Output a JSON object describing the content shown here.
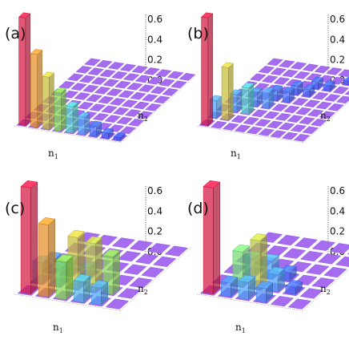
{
  "chart_data": [
    {
      "type": "bar3d",
      "panel_label": "(a)",
      "xlabel": "n1",
      "ylabel": "n2",
      "zticks": [
        "0.6",
        "0.4",
        "0.2",
        "0.0"
      ],
      "zlim": [
        0,
        0.6
      ],
      "grid_size": [
        9,
        9
      ],
      "bars": [
        {
          "n1": 0,
          "n2": 0,
          "value": 0.62
        },
        {
          "n1": 1,
          "n2": 0,
          "value": 0.42
        },
        {
          "n1": 2,
          "n2": 0,
          "value": 0.3
        },
        {
          "n1": 3,
          "n2": 0,
          "value": 0.22
        },
        {
          "n1": 4,
          "n2": 0,
          "value": 0.15
        },
        {
          "n1": 5,
          "n2": 0,
          "value": 0.1
        },
        {
          "n1": 6,
          "n2": 0,
          "value": 0.06
        },
        {
          "n1": 7,
          "n2": 0,
          "value": 0.03
        },
        {
          "n1": 8,
          "n2": 0,
          "value": 0.015
        }
      ]
    },
    {
      "type": "bar3d",
      "panel_label": "(b)",
      "xlabel": "n1",
      "ylabel": "n2",
      "zticks": [
        "0.6",
        "0.4",
        "0.2",
        "0.0"
      ],
      "zlim": [
        0,
        0.6
      ],
      "grid_size": [
        9,
        9
      ],
      "bars": [
        {
          "n1": 0,
          "n2": 0,
          "value": 0.62
        },
        {
          "n1": 0,
          "n2": 1,
          "value": 0.1
        },
        {
          "n1": 1,
          "n2": 1,
          "value": 0.3
        },
        {
          "n1": 1,
          "n2": 2,
          "value": 0.1
        },
        {
          "n1": 2,
          "n2": 2,
          "value": 0.15
        },
        {
          "n1": 2,
          "n2": 3,
          "value": 0.08
        },
        {
          "n1": 3,
          "n2": 3,
          "value": 0.09
        },
        {
          "n1": 3,
          "n2": 4,
          "value": 0.06
        },
        {
          "n1": 4,
          "n2": 4,
          "value": 0.06
        },
        {
          "n1": 4,
          "n2": 5,
          "value": 0.05
        },
        {
          "n1": 5,
          "n2": 5,
          "value": 0.04
        },
        {
          "n1": 5,
          "n2": 6,
          "value": 0.04
        },
        {
          "n1": 6,
          "n2": 6,
          "value": 0.03
        },
        {
          "n1": 7,
          "n2": 7,
          "value": 0.02
        }
      ]
    },
    {
      "type": "bar3d",
      "panel_label": "(c)",
      "xlabel": "n1",
      "ylabel": "n2",
      "zticks": [
        "0.6",
        "0.4",
        "0.2",
        "0.0"
      ],
      "zlim": [
        0,
        0.6
      ],
      "grid_size": [
        6,
        6
      ],
      "bars": [
        {
          "n1": 0,
          "n2": 0,
          "value": 0.62
        },
        {
          "n1": 0,
          "n2": 1,
          "value": 0.12
        },
        {
          "n1": 0,
          "n2": 2,
          "value": 0.08
        },
        {
          "n1": 1,
          "n2": 0,
          "value": 0.42
        },
        {
          "n1": 1,
          "n2": 1,
          "value": 0.1
        },
        {
          "n1": 1,
          "n2": 2,
          "value": 0.08
        },
        {
          "n1": 2,
          "n2": 0,
          "value": 0.22
        },
        {
          "n1": 2,
          "n2": 1,
          "value": 0.3
        },
        {
          "n1": 2,
          "n2": 2,
          "value": 0.06
        },
        {
          "n1": 3,
          "n2": 0,
          "value": 0.12
        },
        {
          "n1": 3,
          "n2": 1,
          "value": 0.28
        },
        {
          "n1": 4,
          "n2": 0,
          "value": 0.1
        },
        {
          "n1": 4,
          "n2": 1,
          "value": 0.22
        }
      ]
    },
    {
      "type": "bar3d",
      "panel_label": "(d)",
      "xlabel": "n1",
      "ylabel": "n2",
      "zticks": [
        "0.6",
        "0.4",
        "0.2",
        "0.0"
      ],
      "zlim": [
        0,
        0.6
      ],
      "grid_size": [
        6,
        6
      ],
      "bars": [
        {
          "n1": 0,
          "n2": 0,
          "value": 0.62
        },
        {
          "n1": 1,
          "n2": 0,
          "value": 0.08
        },
        {
          "n1": 1,
          "n2": 1,
          "value": 0.2
        },
        {
          "n1": 1,
          "n2": 2,
          "value": 0.1
        },
        {
          "n1": 2,
          "n2": 0,
          "value": 0.1
        },
        {
          "n1": 2,
          "n2": 1,
          "value": 0.28
        },
        {
          "n1": 2,
          "n2": 2,
          "value": 0.1
        },
        {
          "n1": 3,
          "n2": 0,
          "value": 0.08
        },
        {
          "n1": 3,
          "n2": 1,
          "value": 0.1
        },
        {
          "n1": 3,
          "n2": 2,
          "value": 0.05
        },
        {
          "n1": 4,
          "n2": 1,
          "value": 0.04
        }
      ]
    }
  ]
}
